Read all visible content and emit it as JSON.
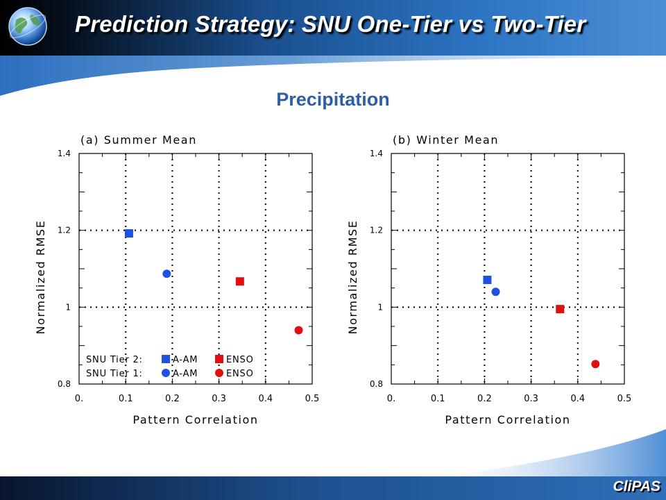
{
  "header": {
    "title": "Prediction Strategy: SNU One-Tier vs Two-Tier"
  },
  "subtitle": "Precipitation",
  "footer": {
    "brand": "CliPAS"
  },
  "colors": {
    "tier2": "#2050e0",
    "tier1": "#2050e0",
    "enso": "#e01010",
    "title_blue": "#2e5fa5"
  },
  "chart_data": [
    {
      "type": "scatter",
      "title": "(a) Summer Mean",
      "xlabel": "Pattern Correlation",
      "ylabel": "Normalized RMSE",
      "xlim": [
        0,
        0.5
      ],
      "ylim": [
        0.8,
        1.4
      ],
      "xticks": [
        "0.",
        "0.1",
        "0.2",
        "0.3",
        "0.4",
        "0.5"
      ],
      "yticks": [
        "0.8",
        "1",
        "1.2",
        "1.4"
      ],
      "grid": true,
      "series": [
        {
          "name": "SNU Tier 2: A-AM",
          "marker": "square",
          "color": "#2050e0",
          "x": 0.107,
          "y": 1.192
        },
        {
          "name": "SNU Tier 1: A-AM",
          "marker": "circle",
          "color": "#2050e0",
          "x": 0.188,
          "y": 1.087
        },
        {
          "name": "SNU Tier 2: ENSO",
          "marker": "square",
          "color": "#e01010",
          "x": 0.345,
          "y": 1.067
        },
        {
          "name": "SNU Tier 1: ENSO",
          "marker": "circle",
          "color": "#e01010",
          "x": 0.471,
          "y": 0.94
        }
      ],
      "legend": {
        "placement": "bottom-left",
        "rows": [
          {
            "label": "SNU Tier 2:",
            "items": [
              {
                "marker": "square",
                "color": "#2050e0",
                "text": "A-AM"
              },
              {
                "marker": "square",
                "color": "#e01010",
                "text": "ENSO"
              }
            ]
          },
          {
            "label": "SNU Tier 1:",
            "items": [
              {
                "marker": "circle",
                "color": "#2050e0",
                "text": "A-AM"
              },
              {
                "marker": "circle",
                "color": "#e01010",
                "text": "ENSO"
              }
            ]
          }
        ]
      }
    },
    {
      "type": "scatter",
      "title": "(b) Winter Mean",
      "xlabel": "Pattern Correlation",
      "ylabel": "Normalized RMSE",
      "xlim": [
        0,
        0.5
      ],
      "ylim": [
        0.8,
        1.4
      ],
      "xticks": [
        "0.",
        "0.1",
        "0.2",
        "0.3",
        "0.4",
        "0.5"
      ],
      "yticks": [
        "0.8",
        "1",
        "1.2",
        "1.4"
      ],
      "grid": true,
      "series": [
        {
          "name": "SNU Tier 2: A-AM",
          "marker": "square",
          "color": "#2050e0",
          "x": 0.206,
          "y": 1.071
        },
        {
          "name": "SNU Tier 1: A-AM",
          "marker": "circle",
          "color": "#2050e0",
          "x": 0.224,
          "y": 1.04
        },
        {
          "name": "SNU Tier 2: ENSO",
          "marker": "square",
          "color": "#e01010",
          "x": 0.362,
          "y": 0.995
        },
        {
          "name": "SNU Tier 1: ENSO",
          "marker": "circle",
          "color": "#e01010",
          "x": 0.438,
          "y": 0.852
        }
      ]
    }
  ]
}
